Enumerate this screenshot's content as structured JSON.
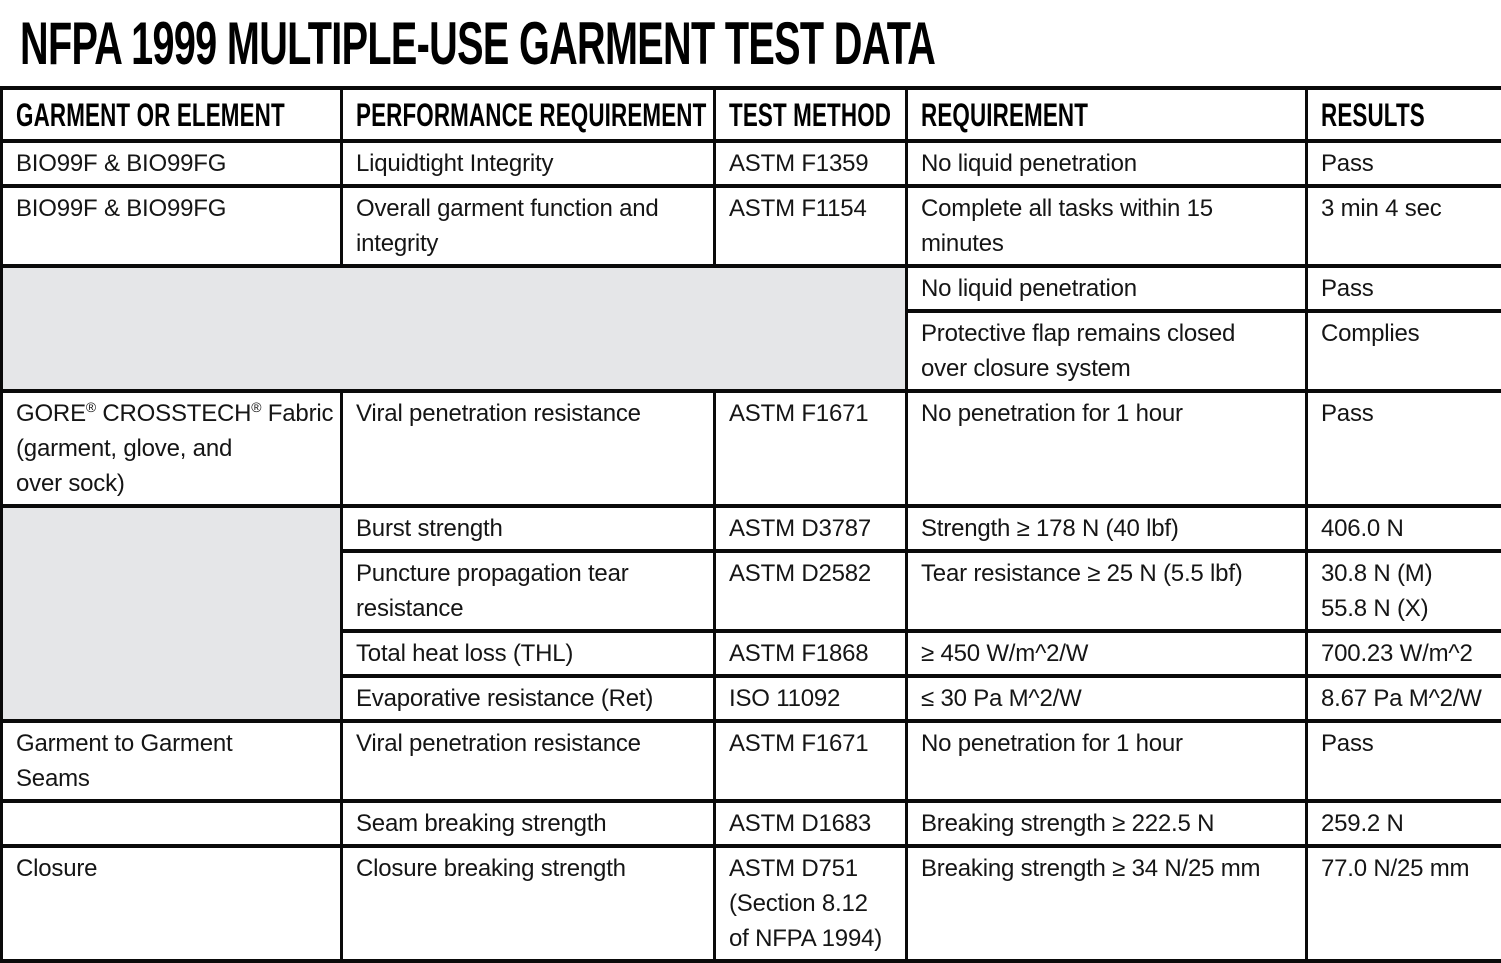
{
  "title": "NFPA 1999 MULTIPLE-USE GARMENT TEST DATA",
  "colors": {
    "border": "#0a0a0a",
    "text": "#151515",
    "cell_shade": "#e5e6e8",
    "bg": "#ffffff"
  },
  "table": {
    "columns": [
      "GARMENT OR ELEMENT",
      "PERFORMANCE REQUIREMENT",
      "TEST METHOD",
      "REQUIREMENT",
      "RESULTS"
    ],
    "rows": [
      {
        "garment": "BIO99F & BIO99FG",
        "performance": "Liquidtight Integrity",
        "method": "ASTM F1359",
        "requirement": "No liquid penetration",
        "results": "Pass"
      },
      {
        "garment": "BIO99F & BIO99FG",
        "performance": "Overall garment function and\nintegrity",
        "method": "ASTM F1154",
        "requirement": "Complete all tasks within 15\nminutes",
        "results": "3 min 4 sec"
      },
      {
        "requirement": "No liquid penetration",
        "results": "Pass"
      },
      {
        "requirement": "Protective flap remains closed\nover closure system",
        "results": "Complies"
      },
      {
        "garment": "GORE® CROSSTECH® Fabric\n(garment, glove, and\nover sock)",
        "performance": "Viral penetration resistance",
        "method": "ASTM F1671",
        "requirement": "No penetration for 1 hour",
        "results": "Pass"
      },
      {
        "performance": "Burst strength",
        "method": "ASTM D3787",
        "requirement": "Strength ≥ 178 N (40 lbf)",
        "results": "406.0 N"
      },
      {
        "performance": "Puncture propagation tear\nresistance",
        "method": "ASTM D2582",
        "requirement": "Tear resistance ≥ 25 N (5.5 lbf)",
        "results": "30.8 N (M)\n55.8 N (X)"
      },
      {
        "performance": "Total heat loss (THL)",
        "method": "ASTM F1868",
        "requirement": "≥ 450 W/m^2/W",
        "results": "700.23 W/m^2"
      },
      {
        "performance": "Evaporative resistance (Ret)",
        "method": "ISO 11092",
        "requirement": "≤ 30 Pa M^2/W",
        "results": "8.67 Pa M^2/W"
      },
      {
        "garment": "Garment to Garment\nSeams",
        "performance": "Viral penetration resistance",
        "method": "ASTM F1671",
        "requirement": "No penetration for 1 hour",
        "results": "Pass"
      },
      {
        "garment": "",
        "performance": "Seam breaking strength",
        "method": "ASTM D1683",
        "requirement": "Breaking strength ≥ 222.5 N",
        "results": "259.2 N"
      },
      {
        "garment": "Closure",
        "performance": "Closure breaking strength",
        "method": "ASTM D751\n(Section 8.12\nof NFPA 1994)",
        "requirement": "Breaking strength ≥ 34 N/25 mm",
        "results": "77.0 N/25 mm"
      }
    ]
  }
}
